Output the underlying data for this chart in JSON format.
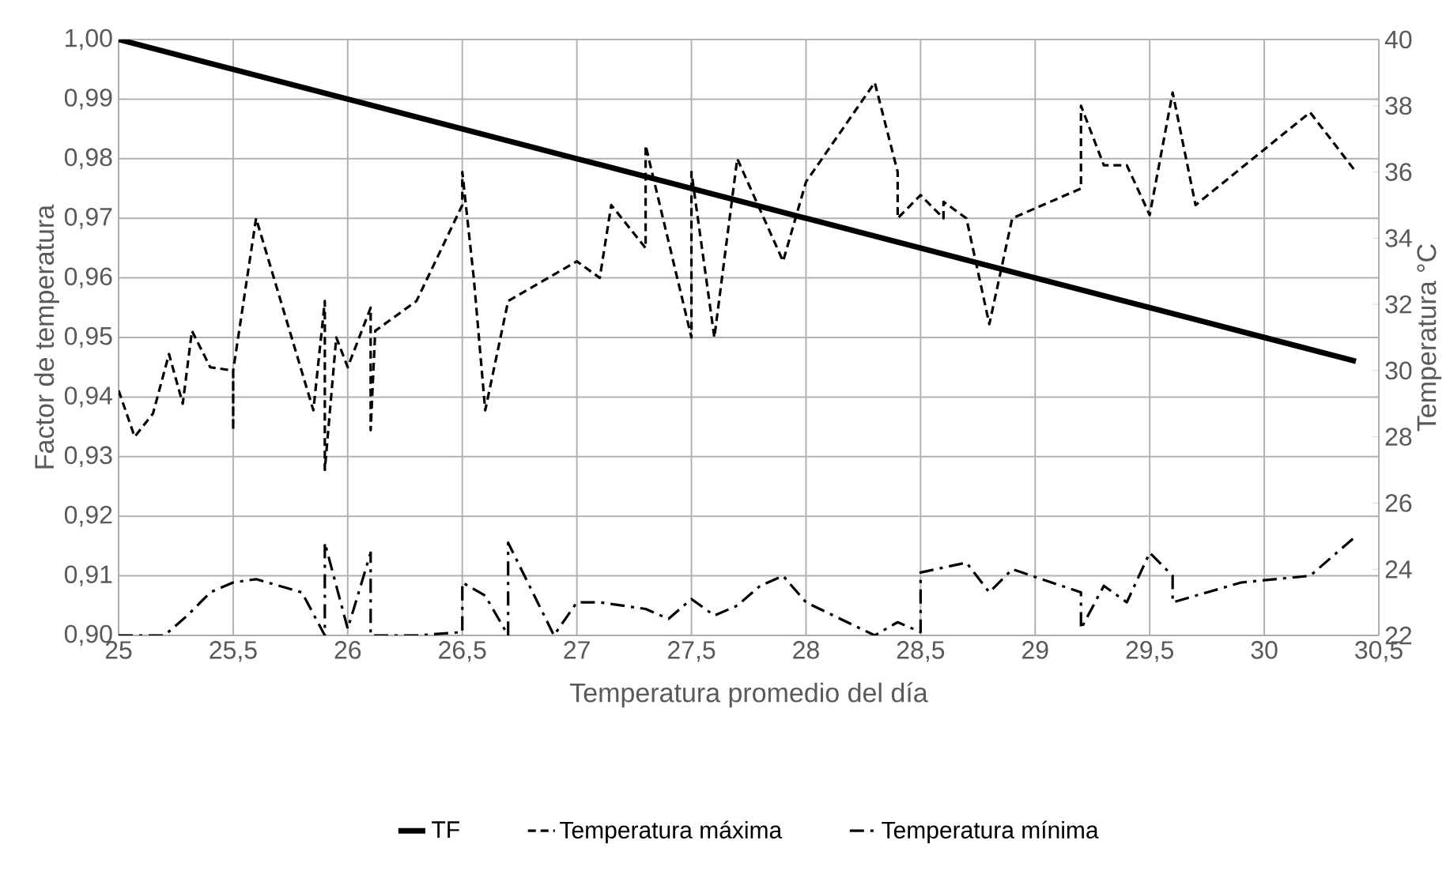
{
  "chart_data": {
    "type": "line",
    "xlabel": "Temperatura promedio del día",
    "ylabel": "Factor de temperatura",
    "y2label": "Temperatura °C",
    "xlim": [
      25,
      30.5
    ],
    "xticks": [
      25,
      {
        "value": 25.5,
        "label": "25,5"
      },
      26,
      {
        "value": 26.5,
        "label": "26,5"
      },
      27,
      {
        "value": 27.5,
        "label": "27,5"
      },
      28,
      {
        "value": 28.5,
        "label": "28,5"
      },
      29,
      {
        "value": 29.5,
        "label": "29,5"
      },
      30,
      {
        "value": 30.5,
        "label": "30,5"
      }
    ],
    "ylim": [
      0.9,
      1.0
    ],
    "yticks": [
      {
        "value": 0.9,
        "label": "0,90"
      },
      {
        "value": 0.91,
        "label": "0,91"
      },
      {
        "value": 0.92,
        "label": "0,92"
      },
      {
        "value": 0.93,
        "label": "0,93"
      },
      {
        "value": 0.94,
        "label": "0,94"
      },
      {
        "value": 0.95,
        "label": "0,95"
      },
      {
        "value": 0.96,
        "label": "0,96"
      },
      {
        "value": 0.97,
        "label": "0,97"
      },
      {
        "value": 0.98,
        "label": "0,98"
      },
      {
        "value": 0.99,
        "label": "0,99"
      },
      {
        "value": 1.0,
        "label": "1,00"
      }
    ],
    "y2lim": [
      22,
      40
    ],
    "y2ticks": [
      22,
      24,
      26,
      28,
      30,
      32,
      34,
      36,
      38,
      40
    ],
    "grid": true,
    "legend": "bottom",
    "marker": "none",
    "series": [
      {
        "name": "TF",
        "color": "#000000",
        "line_style": "solid",
        "x": [
          25,
          26,
          27,
          28,
          29,
          30,
          30.4
        ],
        "values": [
          1.0,
          0.99,
          0.98,
          0.97,
          0.96,
          0.95,
          0.946
        ]
      },
      {
        "name": "Temperatura máxima",
        "color": "#000000",
        "line_style": "dashed",
        "axis": "y2",
        "x": [
          25.0,
          25.07,
          25.15,
          25.22,
          25.28,
          25.32,
          25.4,
          25.5,
          25.5,
          25.5,
          25.6,
          25.85,
          25.9,
          25.9,
          25.95,
          26.0,
          26.1,
          26.1,
          26.12,
          26.3,
          26.5,
          26.5,
          26.55,
          26.6,
          26.7,
          27.0,
          27.1,
          27.15,
          27.3,
          27.3,
          27.5,
          27.5,
          27.6,
          27.7,
          27.9,
          28.0,
          28.3,
          28.4,
          28.4,
          28.5,
          28.6,
          28.6,
          28.7,
          28.8,
          28.9,
          29.2,
          29.2,
          29.3,
          29.4,
          29.5,
          29.6,
          29.7,
          30.2,
          30.4
        ],
        "values": [
          29.4,
          28.0,
          28.7,
          30.5,
          29.0,
          31.2,
          30.1,
          30.0,
          28.2,
          30.0,
          34.6,
          28.8,
          32.1,
          27.0,
          31.0,
          30.1,
          31.9,
          28.2,
          31.2,
          32.1,
          35.0,
          36.0,
          32.8,
          28.8,
          32.1,
          33.3,
          32.8,
          35.0,
          33.7,
          36.8,
          31.0,
          36.0,
          31.0,
          36.4,
          33.3,
          35.7,
          38.7,
          36.0,
          34.6,
          35.3,
          34.6,
          35.1,
          34.6,
          31.4,
          34.6,
          35.5,
          38.0,
          36.2,
          36.2,
          34.7,
          38.4,
          35.0,
          37.8,
          36.0
        ]
      },
      {
        "name": "Temperatura mínima",
        "color": "#000000",
        "line_style": "dashdot",
        "axis": "y2",
        "x": [
          25.0,
          25.2,
          25.3,
          25.4,
          25.5,
          25.6,
          25.8,
          25.9,
          25.9,
          26.0,
          26.1,
          26.1,
          26.3,
          26.5,
          26.5,
          26.6,
          26.7,
          26.7,
          26.9,
          27.0,
          27.1,
          27.3,
          27.4,
          27.5,
          27.6,
          27.7,
          27.8,
          27.9,
          28.0,
          28.3,
          28.4,
          28.5,
          28.5,
          28.7,
          28.8,
          28.9,
          29.2,
          29.2,
          29.3,
          29.4,
          29.5,
          29.6,
          29.6,
          29.9,
          30.2,
          30.4
        ],
        "values": [
          22.0,
          22.0,
          22.6,
          23.3,
          23.6,
          23.7,
          23.3,
          22.0,
          24.8,
          22.2,
          24.5,
          22.0,
          22.0,
          22.1,
          23.6,
          23.2,
          22.0,
          24.8,
          22.0,
          23.0,
          23.0,
          22.8,
          22.5,
          23.1,
          22.6,
          22.9,
          23.5,
          23.8,
          23.0,
          22.0,
          22.4,
          22.1,
          23.9,
          24.2,
          23.3,
          24.0,
          23.3,
          22.2,
          23.5,
          23.0,
          24.5,
          23.8,
          23.0,
          23.6,
          23.8,
          25.0
        ]
      }
    ]
  }
}
